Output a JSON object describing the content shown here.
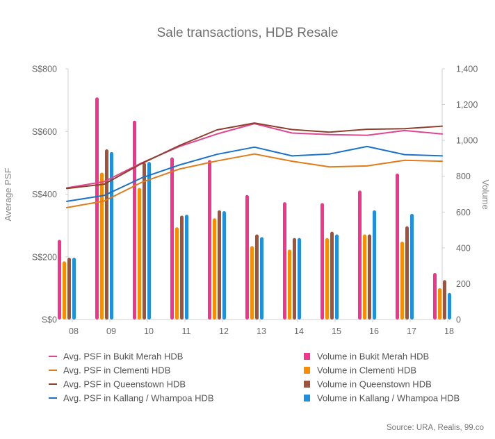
{
  "chart_data": {
    "type": "bar",
    "title": "Sale transactions, HDB Resale",
    "categories": [
      "08",
      "09",
      "10",
      "11",
      "12",
      "13",
      "14",
      "15",
      "16",
      "17",
      "18"
    ],
    "left_axis": {
      "label": "Average PSF",
      "range": [
        0,
        800
      ],
      "ticks": [
        0,
        200,
        400,
        600,
        800
      ],
      "tick_labels": [
        "S$0",
        "S$200",
        "S$400",
        "S$600",
        "S$800"
      ]
    },
    "right_axis": {
      "label": "Volume",
      "range": [
        0,
        1400
      ],
      "ticks": [
        0,
        200,
        400,
        600,
        800,
        1000,
        1200,
        1400
      ],
      "tick_labels": [
        "0",
        "200",
        "400",
        "600",
        "800",
        "1,000",
        "1,200",
        "1,400"
      ]
    },
    "bar_series": [
      {
        "name": "Volume in Bukit Merah HDB",
        "color": "#f2348f",
        "values": [
          445,
          1240,
          1110,
          905,
          890,
          695,
          655,
          650,
          720,
          815,
          260
        ]
      },
      {
        "name": "Volume in Clementi HDB",
        "color": "#fb8c00",
        "values": [
          325,
          820,
          735,
          515,
          565,
          410,
          390,
          455,
          475,
          435,
          175
        ]
      },
      {
        "name": "Volume in Queenstown HDB",
        "color": "#a0523c",
        "values": [
          345,
          950,
          875,
          580,
          610,
          475,
          455,
          490,
          475,
          520,
          220
        ]
      },
      {
        "name": "Volume in Kallang / Whampoa HDB",
        "color": "#1e90e0",
        "values": [
          345,
          935,
          880,
          585,
          605,
          460,
          455,
          475,
          610,
          590,
          148
        ]
      }
    ],
    "line_series": [
      {
        "name": "Avg. PSF in Bukit Merah HDB",
        "color": "#e0458f",
        "values": [
          420,
          440,
          500,
          552,
          592,
          625,
          595,
          590,
          588,
          603,
          592
        ]
      },
      {
        "name": "Avg. PSF in Clementi HDB",
        "color": "#e07b1a",
        "values": [
          357,
          378,
          438,
          480,
          506,
          528,
          505,
          487,
          490,
          508,
          505
        ]
      },
      {
        "name": "Avg. PSF in Queenstown HDB",
        "color": "#8e3f2e",
        "values": [
          418,
          432,
          498,
          555,
          605,
          627,
          606,
          598,
          607,
          609,
          617
        ]
      },
      {
        "name": "Avg. PSF in Kallang / Whampoa HDB",
        "color": "#1a72c8",
        "values": [
          377,
          396,
          452,
          493,
          527,
          550,
          522,
          528,
          552,
          526,
          522
        ]
      }
    ],
    "legend_position": "bottom",
    "grid": false,
    "source": "Source: URA, Realis, 99.co"
  }
}
